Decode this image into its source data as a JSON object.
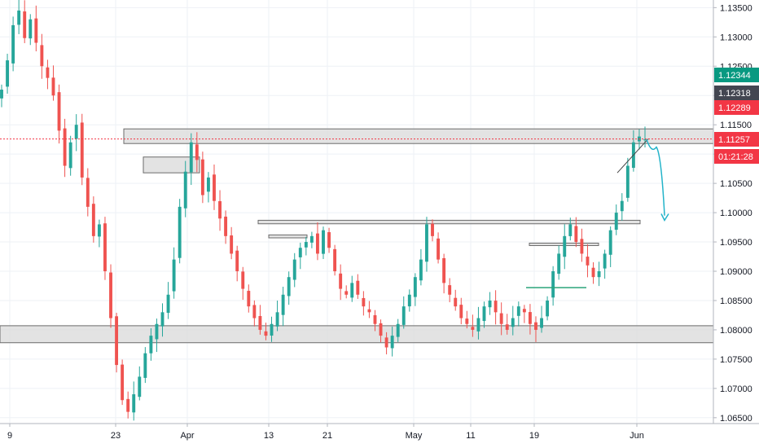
{
  "chart_data": {
    "type": "candlestick",
    "y_axis": {
      "ticks": [
        "1.13500",
        "1.13000",
        "1.12500",
        "1.12000",
        "1.11500",
        "1.11000",
        "1.10500",
        "1.10000",
        "1.09500",
        "1.09000",
        "1.08500",
        "1.08000",
        "1.07500",
        "1.07000",
        "1.06500"
      ],
      "range": [
        1.064,
        1.1363
      ]
    },
    "x_axis": {
      "ticks": [
        "9",
        "23",
        "Apr",
        "13",
        "21",
        "May",
        "11",
        "19",
        "Jun"
      ]
    },
    "price_badges": [
      {
        "label": "1.12344",
        "color": "#089981"
      },
      {
        "label": "1.12318",
        "color": "#434651"
      },
      {
        "label": "1.12289",
        "color": "#f23645"
      },
      {
        "label": "1.11257",
        "color": "#f23645"
      },
      {
        "label": "01:21:28",
        "color": "#f23645"
      }
    ],
    "current_price": 1.11257,
    "colors": {
      "up": "#26a69a",
      "down": "#ef5350",
      "zone": "#d9d9d9",
      "projection": "#22b3c9",
      "horizontal_line": "#2aa57a"
    },
    "zones": [
      {
        "from": 1.1143,
        "to": 1.1118
      },
      {
        "from": 1.1095,
        "to": 1.1068
      },
      {
        "from": 1.0987,
        "to": 1.0981
      },
      {
        "from": 1.0962,
        "to": 1.0957
      },
      {
        "from": 1.0948,
        "to": 1.0945
      },
      {
        "from": 1.0807,
        "to": 1.0778
      }
    ],
    "closes": [
      1.121,
      1.126,
      1.132,
      1.1345,
      1.1298,
      1.133,
      1.129,
      1.125,
      1.123,
      1.12,
      1.114,
      1.108,
      1.112,
      1.115,
      1.106,
      1.101,
      1.096,
      1.098,
      1.09,
      1.082,
      1.074,
      1.068,
      1.066,
      1.069,
      1.072,
      1.076,
      1.079,
      1.081,
      1.083,
      1.086,
      1.092,
      1.101,
      1.107,
      1.112,
      1.109,
      1.103,
      1.106,
      1.102,
      1.099,
      1.096,
      1.093,
      1.09,
      1.087,
      1.084,
      1.082,
      1.08,
      1.079,
      1.081,
      1.083,
      1.086,
      1.089,
      1.092,
      1.094,
      1.095,
      1.096,
      1.093,
      1.097,
      1.094,
      1.09,
      1.087,
      1.086,
      1.088,
      1.086,
      1.084,
      1.083,
      1.081,
      1.079,
      1.077,
      1.079,
      1.081,
      1.084,
      1.086,
      1.089,
      1.092,
      1.098,
      1.096,
      1.092,
      1.088,
      1.086,
      1.084,
      1.082,
      1.081,
      1.08,
      1.082,
      1.084,
      1.085,
      1.083,
      1.081,
      1.08,
      1.082,
      1.084,
      1.083,
      1.081,
      1.08,
      1.082,
      1.085,
      1.09,
      1.093,
      1.096,
      1.098,
      1.095,
      1.093,
      1.091,
      1.089,
      1.09,
      1.093,
      1.097,
      1.1,
      1.102,
      1.108,
      1.112,
      1.113,
      1.1125
    ],
    "projection_note": "",
    "title": ""
  }
}
